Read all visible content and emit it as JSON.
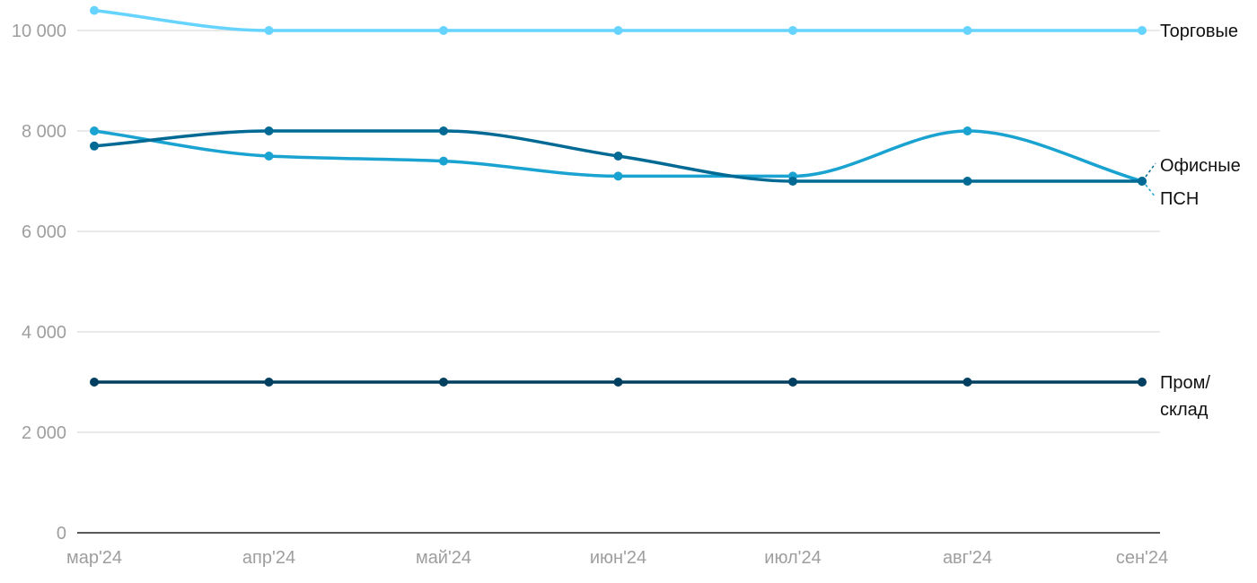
{
  "chart_data": {
    "type": "line",
    "title": "",
    "xlabel": "",
    "ylabel": "",
    "ylim": [
      0,
      10000
    ],
    "yticks": [
      0,
      2000,
      4000,
      6000,
      8000,
      10000
    ],
    "ytick_labels": [
      "0",
      "2 000",
      "4 000",
      "6 000",
      "8 000",
      "10 000"
    ],
    "categories": [
      "мар'24",
      "апр'24",
      "май'24",
      "июн'24",
      "июл'24",
      "авг'24",
      "сен'24"
    ],
    "grid": true,
    "legend": "right (end labels)",
    "series": [
      {
        "name": "Торговые",
        "label_lines": [
          "Торговые"
        ],
        "color": "#66d4ff",
        "values": [
          10400,
          10000,
          10000,
          10000,
          10000,
          10000,
          10000
        ]
      },
      {
        "name": "Офисные",
        "label_lines": [
          "Офисные"
        ],
        "color": "#1aa3d1",
        "values": [
          8000,
          7500,
          7400,
          7100,
          7100,
          8000,
          7000
        ]
      },
      {
        "name": "ПСН",
        "label_lines": [
          "ПСН"
        ],
        "color": "#006994",
        "values": [
          7700,
          8000,
          8000,
          7500,
          7000,
          7000,
          7000
        ]
      },
      {
        "name": "Пром/склад",
        "label_lines": [
          "Пром/",
          "склад"
        ],
        "color": "#003f5f",
        "values": [
          3000,
          3000,
          3000,
          3000,
          3000,
          3000,
          3000
        ]
      }
    ]
  }
}
